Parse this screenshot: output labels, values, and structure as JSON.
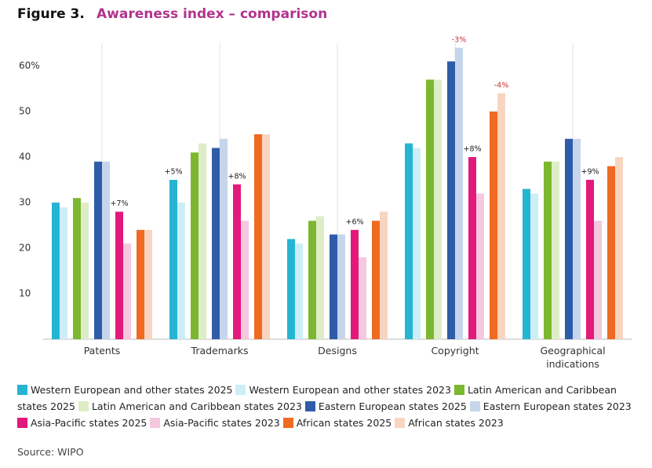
{
  "chart_data": {
    "type": "bar",
    "figure_label": "Figure 3.",
    "title": "Awareness index – comparison",
    "source": "Source: WIPO",
    "categories": [
      "Patents",
      "Trademarks",
      "Designs",
      "Copyright",
      "Geographical indications"
    ],
    "series": [
      {
        "name": "Western European and other states 2025",
        "color": "#25b5d3",
        "values": [
          30,
          35,
          22,
          43,
          33
        ]
      },
      {
        "name": "Western European and other states 2023",
        "color": "#cdeef6",
        "values": [
          29,
          30,
          21,
          42,
          32
        ]
      },
      {
        "name": "Latin American and Caribbean states 2025",
        "color": "#7cb82f",
        "values": [
          31,
          41,
          26,
          57,
          39
        ]
      },
      {
        "name": "Latin American and Caribbean states 2023",
        "color": "#deedc8",
        "values": [
          30,
          43,
          27,
          57,
          39
        ]
      },
      {
        "name": "Eastern European states 2025",
        "color": "#2f5ca9",
        "values": [
          39,
          42,
          23,
          61,
          44
        ]
      },
      {
        "name": "Eastern European states 2023",
        "color": "#c6d5eb",
        "values": [
          39,
          44,
          23,
          64,
          44
        ]
      },
      {
        "name": "Asia-Pacific states 2025",
        "color": "#e3197b",
        "values": [
          28,
          34,
          24,
          40,
          35
        ]
      },
      {
        "name": "Asia-Pacific states 2023",
        "color": "#f4c8de",
        "values": [
          21,
          26,
          18,
          32,
          26
        ]
      },
      {
        "name": "African states 2025",
        "color": "#f06a22",
        "values": [
          24,
          45,
          26,
          50,
          38
        ]
      },
      {
        "name": "African states 2023",
        "color": "#f8d5c1",
        "values": [
          24,
          45,
          28,
          54,
          40
        ]
      }
    ],
    "annotations": [
      {
        "category": 0,
        "series": 6,
        "text": "+7%",
        "color": "#222222"
      },
      {
        "category": 1,
        "series": 0,
        "text": "+5%",
        "color": "#222222"
      },
      {
        "category": 1,
        "series": 6,
        "text": "+8%",
        "color": "#222222"
      },
      {
        "category": 2,
        "series": 6,
        "text": "+6%",
        "color": "#222222"
      },
      {
        "category": 3,
        "series": 5,
        "text": "-3%",
        "color": "#d0312d"
      },
      {
        "category": 3,
        "series": 6,
        "text": "+8%",
        "color": "#222222"
      },
      {
        "category": 3,
        "series": 9,
        "text": "-4%",
        "color": "#d0312d"
      },
      {
        "category": 4,
        "series": 6,
        "text": "+9%",
        "color": "#222222"
      }
    ],
    "ylim": [
      0,
      65
    ],
    "yticks": [
      10,
      20,
      30,
      40,
      50,
      {
        "value": 60,
        "label": "60%"
      }
    ],
    "grid": "category"
  }
}
